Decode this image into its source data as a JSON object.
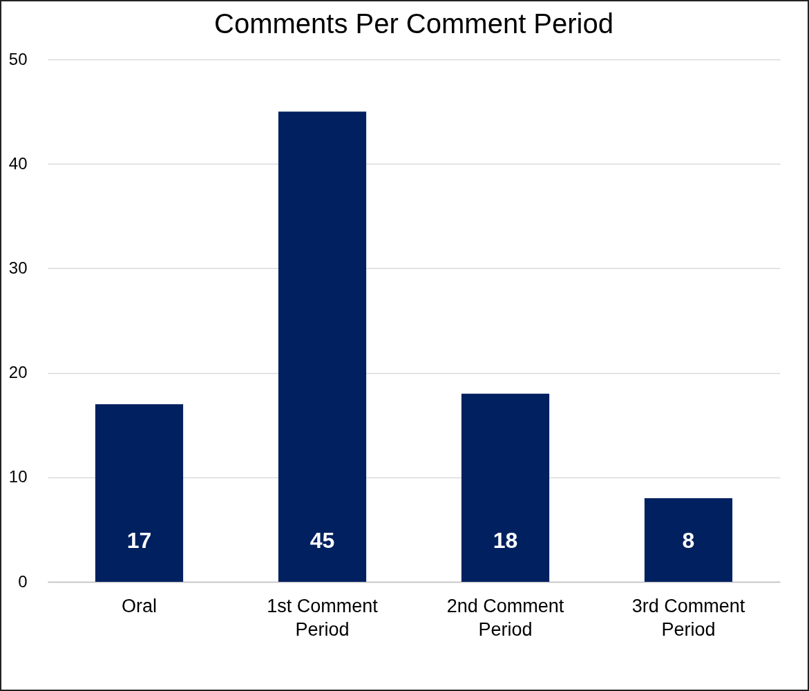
{
  "chart_data": {
    "type": "bar",
    "title": "Comments Per Comment Period",
    "categories": [
      "Oral",
      "1st Comment Period",
      "2nd Comment Period",
      "3rd Comment Period"
    ],
    "values": [
      17,
      45,
      18,
      8
    ],
    "color": "#002060",
    "ylim": [
      0,
      50
    ],
    "yticks": [
      0,
      10,
      20,
      30,
      40,
      50
    ],
    "grid": "y",
    "data_labels": true
  }
}
